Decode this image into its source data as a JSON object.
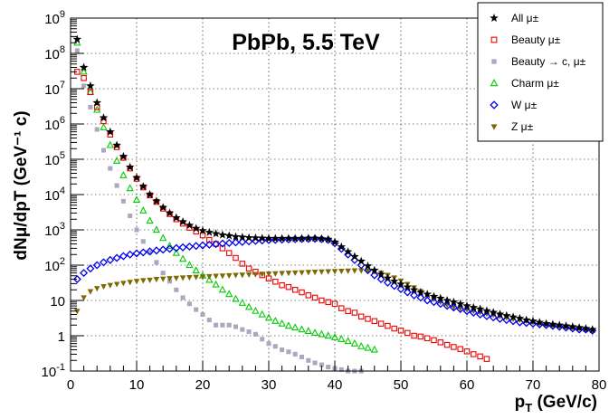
{
  "chart_data": {
    "type": "scatter",
    "title": "PbPb, 5.5 TeV",
    "xlabel_main": "p",
    "xlabel_sub": "T",
    "xlabel_rest": " (GeV/c)",
    "ylabel": "dNμ/dpT (GeV⁻¹ c)",
    "xlim": [
      0,
      80
    ],
    "ylim": [
      0.1,
      1000000000
    ],
    "yscale": "log",
    "grid": true,
    "legend_position": "top-right",
    "x_ticks": [
      "0",
      "10",
      "20",
      "30",
      "40",
      "50",
      "60",
      "70",
      "80"
    ],
    "y_ticks": [
      {
        "base": "10",
        "exp": "-1"
      },
      {
        "base": "1",
        "exp": ""
      },
      {
        "base": "10",
        "exp": ""
      },
      {
        "base": "10",
        "exp": "2"
      },
      {
        "base": "10",
        "exp": "3"
      },
      {
        "base": "10",
        "exp": "4"
      },
      {
        "base": "10",
        "exp": "5"
      },
      {
        "base": "10",
        "exp": "6"
      },
      {
        "base": "10",
        "exp": "7"
      },
      {
        "base": "10",
        "exp": "8"
      },
      {
        "base": "10",
        "exp": "9"
      }
    ],
    "series": [
      {
        "name": "All μ±",
        "color": "#000000",
        "marker": "star",
        "x": [
          1,
          2,
          3,
          4,
          5,
          6,
          7,
          8,
          9,
          10,
          11,
          12,
          13,
          14,
          15,
          16,
          17,
          18,
          19,
          20,
          21,
          22,
          23,
          24,
          25,
          26,
          27,
          28,
          29,
          30,
          31,
          32,
          33,
          34,
          35,
          36,
          37,
          38,
          39,
          40,
          41,
          42,
          43,
          44,
          45,
          46,
          47,
          48,
          49,
          50,
          51,
          52,
          53,
          54,
          55,
          56,
          57,
          58,
          59,
          60,
          61,
          62,
          63,
          64,
          65,
          66,
          67,
          68,
          69,
          70,
          71,
          72,
          73,
          74,
          75,
          76,
          77,
          78,
          79
        ],
        "y": [
          250000000,
          40000000,
          12000000,
          4000000,
          1500000,
          600000,
          250000,
          120000,
          60000,
          30000,
          17000,
          10000,
          6500,
          4300,
          3000,
          2200,
          1700,
          1350,
          1100,
          950,
          850,
          780,
          720,
          680,
          640,
          620,
          600,
          590,
          580,
          570,
          570,
          570,
          570,
          570,
          570,
          580,
          580,
          560,
          540,
          450,
          330,
          240,
          175,
          130,
          95,
          72,
          55,
          43,
          35,
          29,
          24,
          20,
          17,
          15,
          13,
          11.5,
          10,
          9,
          8,
          7,
          6.3,
          5.7,
          5.1,
          4.6,
          4.1,
          3.7,
          3.4,
          3.1,
          2.8,
          2.6,
          2.4,
          2.2,
          2.1,
          2,
          1.9,
          1.8,
          1.7,
          1.6,
          1.5
        ]
      },
      {
        "name": "Beauty μ±",
        "color": "#ee0000",
        "marker": "square-open",
        "x": [
          1,
          2,
          3,
          4,
          5,
          6,
          7,
          8,
          9,
          10,
          11,
          12,
          13,
          14,
          15,
          16,
          17,
          18,
          19,
          20,
          21,
          22,
          23,
          24,
          25,
          26,
          27,
          28,
          29,
          30,
          31,
          32,
          33,
          34,
          35,
          36,
          37,
          38,
          39,
          40,
          41,
          42,
          43,
          44,
          45,
          46,
          47,
          48,
          49,
          50,
          51,
          52,
          53,
          54,
          55,
          56,
          57,
          58,
          59,
          60,
          61,
          62,
          63
        ],
        "y": [
          30000000,
          20000000,
          8000000,
          3000000,
          1200000,
          500000,
          220000,
          110000,
          55000,
          28000,
          16000,
          9500,
          6200,
          4000,
          2800,
          2000,
          1500,
          1150,
          900,
          700,
          520,
          400,
          300,
          220,
          160,
          110,
          80,
          65,
          52,
          42,
          34,
          27,
          24,
          20,
          17,
          14,
          12,
          10,
          9,
          8,
          6,
          5,
          4.5,
          3.5,
          3,
          2.6,
          2.2,
          1.9,
          1.6,
          1.4,
          1.2,
          1,
          0.95,
          0.85,
          0.75,
          0.65,
          0.55,
          0.48,
          0.42,
          0.36,
          0.3,
          0.26,
          0.22
        ]
      },
      {
        "name": "Beauty → c, μ±",
        "color": "#a8a8c0",
        "marker": "square-filled",
        "x": [
          1,
          2,
          3,
          4,
          5,
          6,
          7,
          8,
          9,
          10,
          11,
          12,
          13,
          14,
          15,
          16,
          17,
          18,
          19,
          20,
          21,
          22,
          23,
          24,
          25,
          26,
          27,
          28,
          29,
          30,
          31,
          32,
          33,
          34,
          35,
          36,
          37,
          38,
          39,
          40,
          41,
          42,
          43,
          44
        ],
        "y": [
          120000000,
          12000000,
          3000000,
          700000,
          180000,
          55000,
          18000,
          6500,
          2500,
          1000,
          470,
          230,
          120,
          60,
          35,
          20,
          12,
          8,
          5.5,
          4,
          2.8,
          2,
          2,
          2,
          1.8,
          1.5,
          1.3,
          1.1,
          0.8,
          0.6,
          0.5,
          0.4,
          0.35,
          0.3,
          0.25,
          0.2,
          0.17,
          0.15,
          0.13,
          0.12,
          0.11,
          0.1,
          0.1,
          0.1
        ]
      },
      {
        "name": "Charm μ±",
        "color": "#00cc00",
        "marker": "triangle-up-open",
        "x": [
          1,
          2,
          3,
          4,
          5,
          6,
          7,
          8,
          9,
          10,
          11,
          12,
          13,
          14,
          15,
          16,
          17,
          18,
          19,
          20,
          21,
          22,
          23,
          24,
          25,
          26,
          27,
          28,
          29,
          30,
          31,
          32,
          33,
          34,
          35,
          36,
          37,
          38,
          39,
          40,
          41,
          42,
          43,
          44,
          45,
          46
        ],
        "y": [
          200000000,
          30000000,
          8000000,
          2500000,
          800000,
          250000,
          90000,
          35000,
          15000,
          7000,
          3500,
          1800,
          1000,
          580,
          350,
          220,
          150,
          100,
          70,
          50,
          38,
          28,
          20,
          15,
          11,
          8.5,
          6.5,
          5,
          4,
          3.2,
          2.6,
          2.2,
          1.9,
          1.7,
          1.5,
          1.35,
          1.2,
          1.1,
          1,
          0.9,
          0.8,
          0.7,
          0.6,
          0.5,
          0.45,
          0.4
        ]
      },
      {
        "name": "W μ±",
        "color": "#0000ee",
        "marker": "diamond-open",
        "x": [
          1,
          2,
          3,
          4,
          5,
          6,
          7,
          8,
          9,
          10,
          11,
          12,
          13,
          14,
          15,
          16,
          17,
          18,
          19,
          20,
          21,
          22,
          23,
          24,
          25,
          26,
          27,
          28,
          29,
          30,
          31,
          32,
          33,
          34,
          35,
          36,
          37,
          38,
          39,
          40,
          41,
          42,
          43,
          44,
          45,
          46,
          47,
          48,
          49,
          50,
          51,
          52,
          53,
          54,
          55,
          56,
          57,
          58,
          59,
          60,
          61,
          62,
          63,
          64,
          65,
          66,
          67,
          68,
          69,
          70,
          71,
          72,
          73,
          74,
          75,
          76,
          77,
          78,
          79
        ],
        "y": [
          40,
          60,
          80,
          100,
          120,
          140,
          160,
          180,
          200,
          215,
          230,
          245,
          260,
          275,
          290,
          305,
          320,
          335,
          350,
          365,
          380,
          395,
          410,
          425,
          440,
          455,
          470,
          485,
          500,
          510,
          520,
          530,
          540,
          545,
          550,
          555,
          560,
          545,
          520,
          420,
          290,
          200,
          140,
          100,
          72,
          52,
          40,
          32,
          26,
          21,
          17,
          14,
          12,
          10,
          9,
          8,
          7,
          6.3,
          5.7,
          5,
          4.5,
          4,
          3.6,
          3.3,
          3,
          2.8,
          2.6,
          2.4,
          2.3,
          2.2,
          2.1,
          2,
          1.9,
          1.8,
          1.7,
          1.6,
          1.5,
          1.5,
          1.4
        ]
      },
      {
        "name": "Z μ±",
        "color": "#7b6a00",
        "marker": "triangle-down-filled",
        "x": [
          1,
          2,
          3,
          4,
          5,
          6,
          7,
          8,
          9,
          10,
          11,
          12,
          13,
          14,
          15,
          16,
          17,
          18,
          19,
          20,
          21,
          22,
          23,
          24,
          25,
          26,
          27,
          28,
          29,
          30,
          31,
          32,
          33,
          34,
          35,
          36,
          37,
          38,
          39,
          40,
          41,
          42,
          43,
          44,
          45,
          46,
          47,
          48,
          49,
          50,
          51,
          52,
          53,
          54,
          55,
          56,
          57,
          58,
          59,
          60,
          61,
          62,
          63,
          64,
          65,
          66,
          67,
          68,
          69,
          70,
          71,
          72,
          73,
          74,
          75,
          76,
          77,
          78,
          79
        ],
        "y": [
          5,
          12,
          18,
          22,
          25,
          27,
          29,
          31,
          33,
          35,
          37,
          38,
          40,
          41,
          42,
          43,
          44,
          45,
          46,
          47,
          48,
          49,
          50,
          51,
          52,
          53,
          54,
          55,
          56,
          57,
          58,
          59,
          60,
          61,
          62,
          63,
          64,
          65,
          66,
          67,
          68,
          69,
          70,
          70,
          69,
          66,
          60,
          52,
          44,
          36,
          29,
          23,
          18,
          14,
          11,
          9,
          7.5,
          6.5,
          6,
          5.5,
          5,
          4.6,
          4.2,
          3.9,
          3.6,
          3.3,
          3,
          2.8,
          2.6,
          2.4,
          2.2,
          2.1,
          2,
          1.9,
          1.8,
          1.7,
          1.6,
          1.5,
          1.4
        ]
      }
    ]
  }
}
